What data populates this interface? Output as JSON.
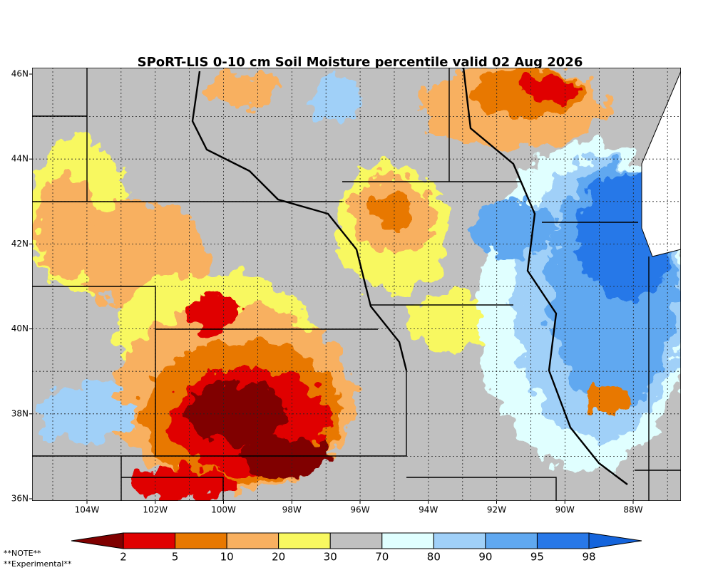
{
  "title": "SPoRT-LIS 0-10 cm Soil Moisture percentile valid 02 Aug 2026",
  "map": {
    "lat_labels": [
      "46N",
      "44N",
      "42N",
      "40N",
      "38N",
      "36N"
    ],
    "lon_labels": [
      "104W",
      "102W",
      "100W",
      "98W",
      "96W",
      "94W",
      "92W",
      "90W",
      "88W"
    ]
  },
  "colorbar": {
    "levels": [
      2,
      5,
      10,
      20,
      30,
      70,
      80,
      90,
      95,
      98
    ],
    "colors": [
      "#800000",
      "#e00000",
      "#e87800",
      "#f8b060",
      "#f8f860",
      "#c0c0c0",
      "#e0ffff",
      "#a0d0f8",
      "#60a8f0",
      "#2878e8",
      "#1464dc"
    ]
  },
  "notes": [
    "**NOTE**",
    "**Experimental**"
  ]
}
